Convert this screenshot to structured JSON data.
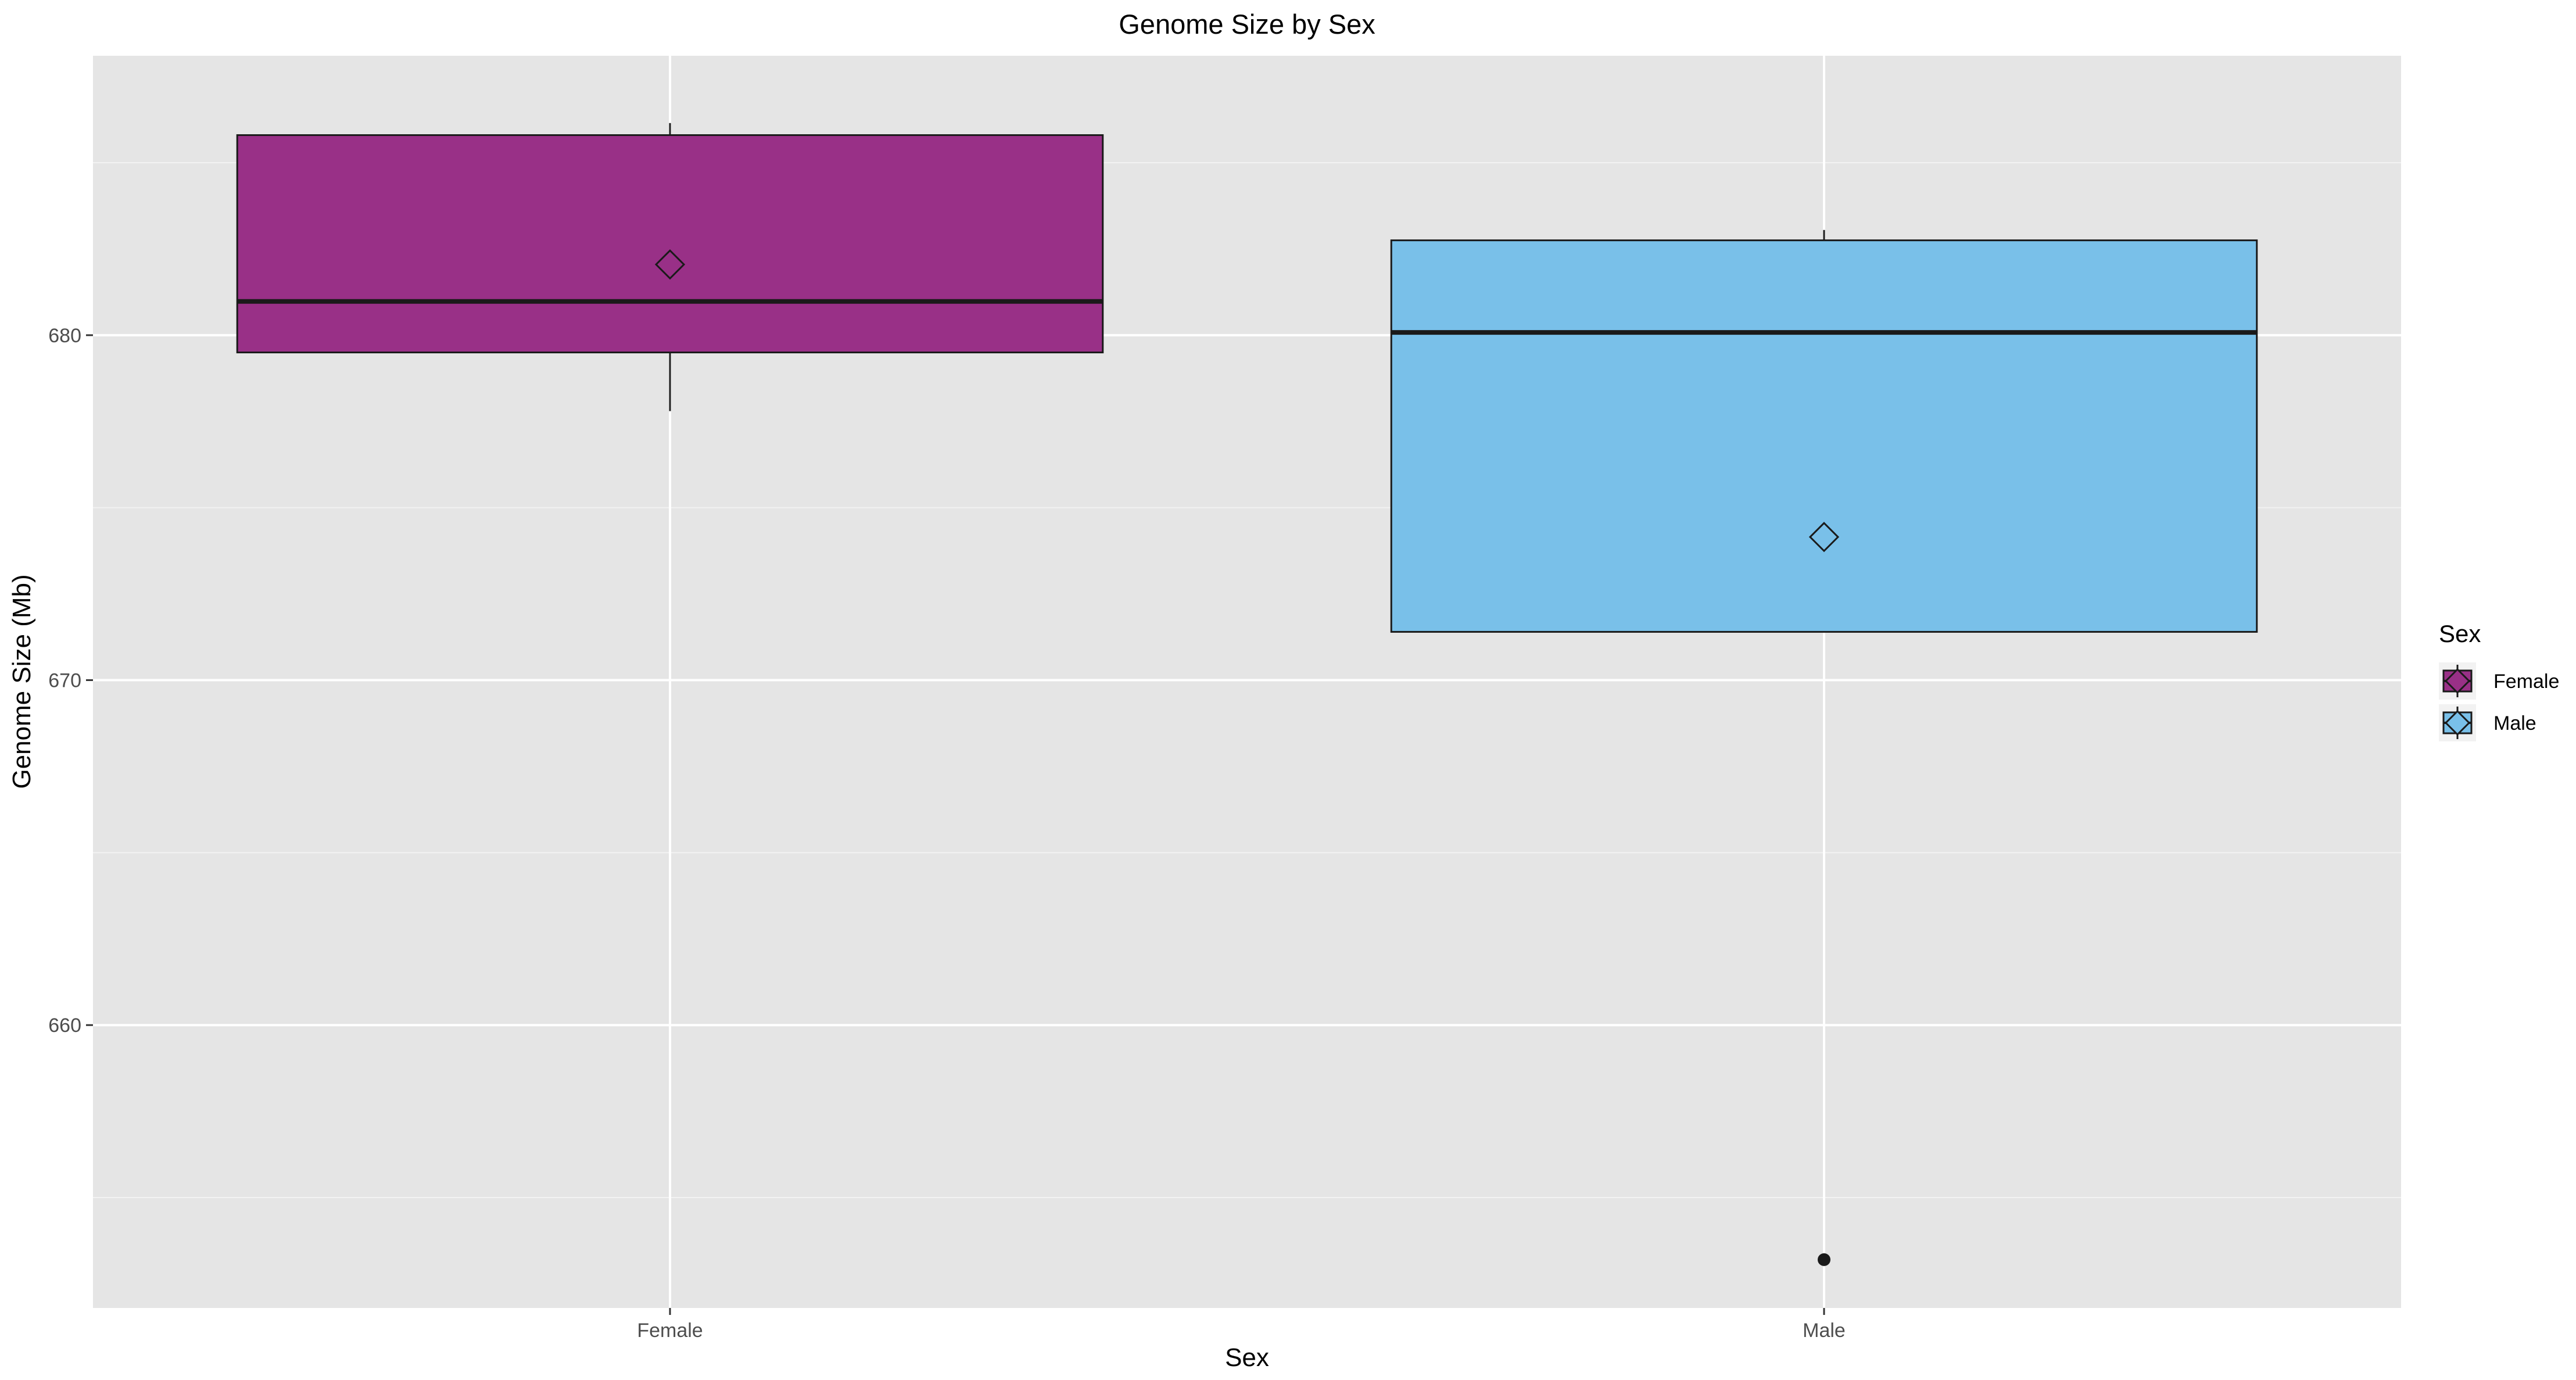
{
  "chart_data": {
    "type": "box",
    "title": "Genome Size by Sex",
    "xlabel": "Sex",
    "ylabel": "Genome Size (Mb)",
    "ylim": [
      651.8,
      688.1
    ],
    "yticks": [
      660,
      670,
      680
    ],
    "grid": true,
    "legend": {
      "title": "Sex",
      "placement": "right"
    },
    "categories": [
      "Female",
      "Male"
    ],
    "series": [
      {
        "name": "Female",
        "color": "#993087",
        "whisker_low": 677.8,
        "q1": 679.5,
        "median": 680.98,
        "q3": 685.8,
        "whisker_high": 686.15,
        "mean": 682.05,
        "outliers": []
      },
      {
        "name": "Male",
        "color": "#79c0e9",
        "whisker_low": 671.4,
        "q1": 671.4,
        "median": 680.08,
        "q3": 682.75,
        "whisker_high": 683.05,
        "mean": 674.15,
        "outliers": [
          653.2
        ]
      }
    ]
  }
}
